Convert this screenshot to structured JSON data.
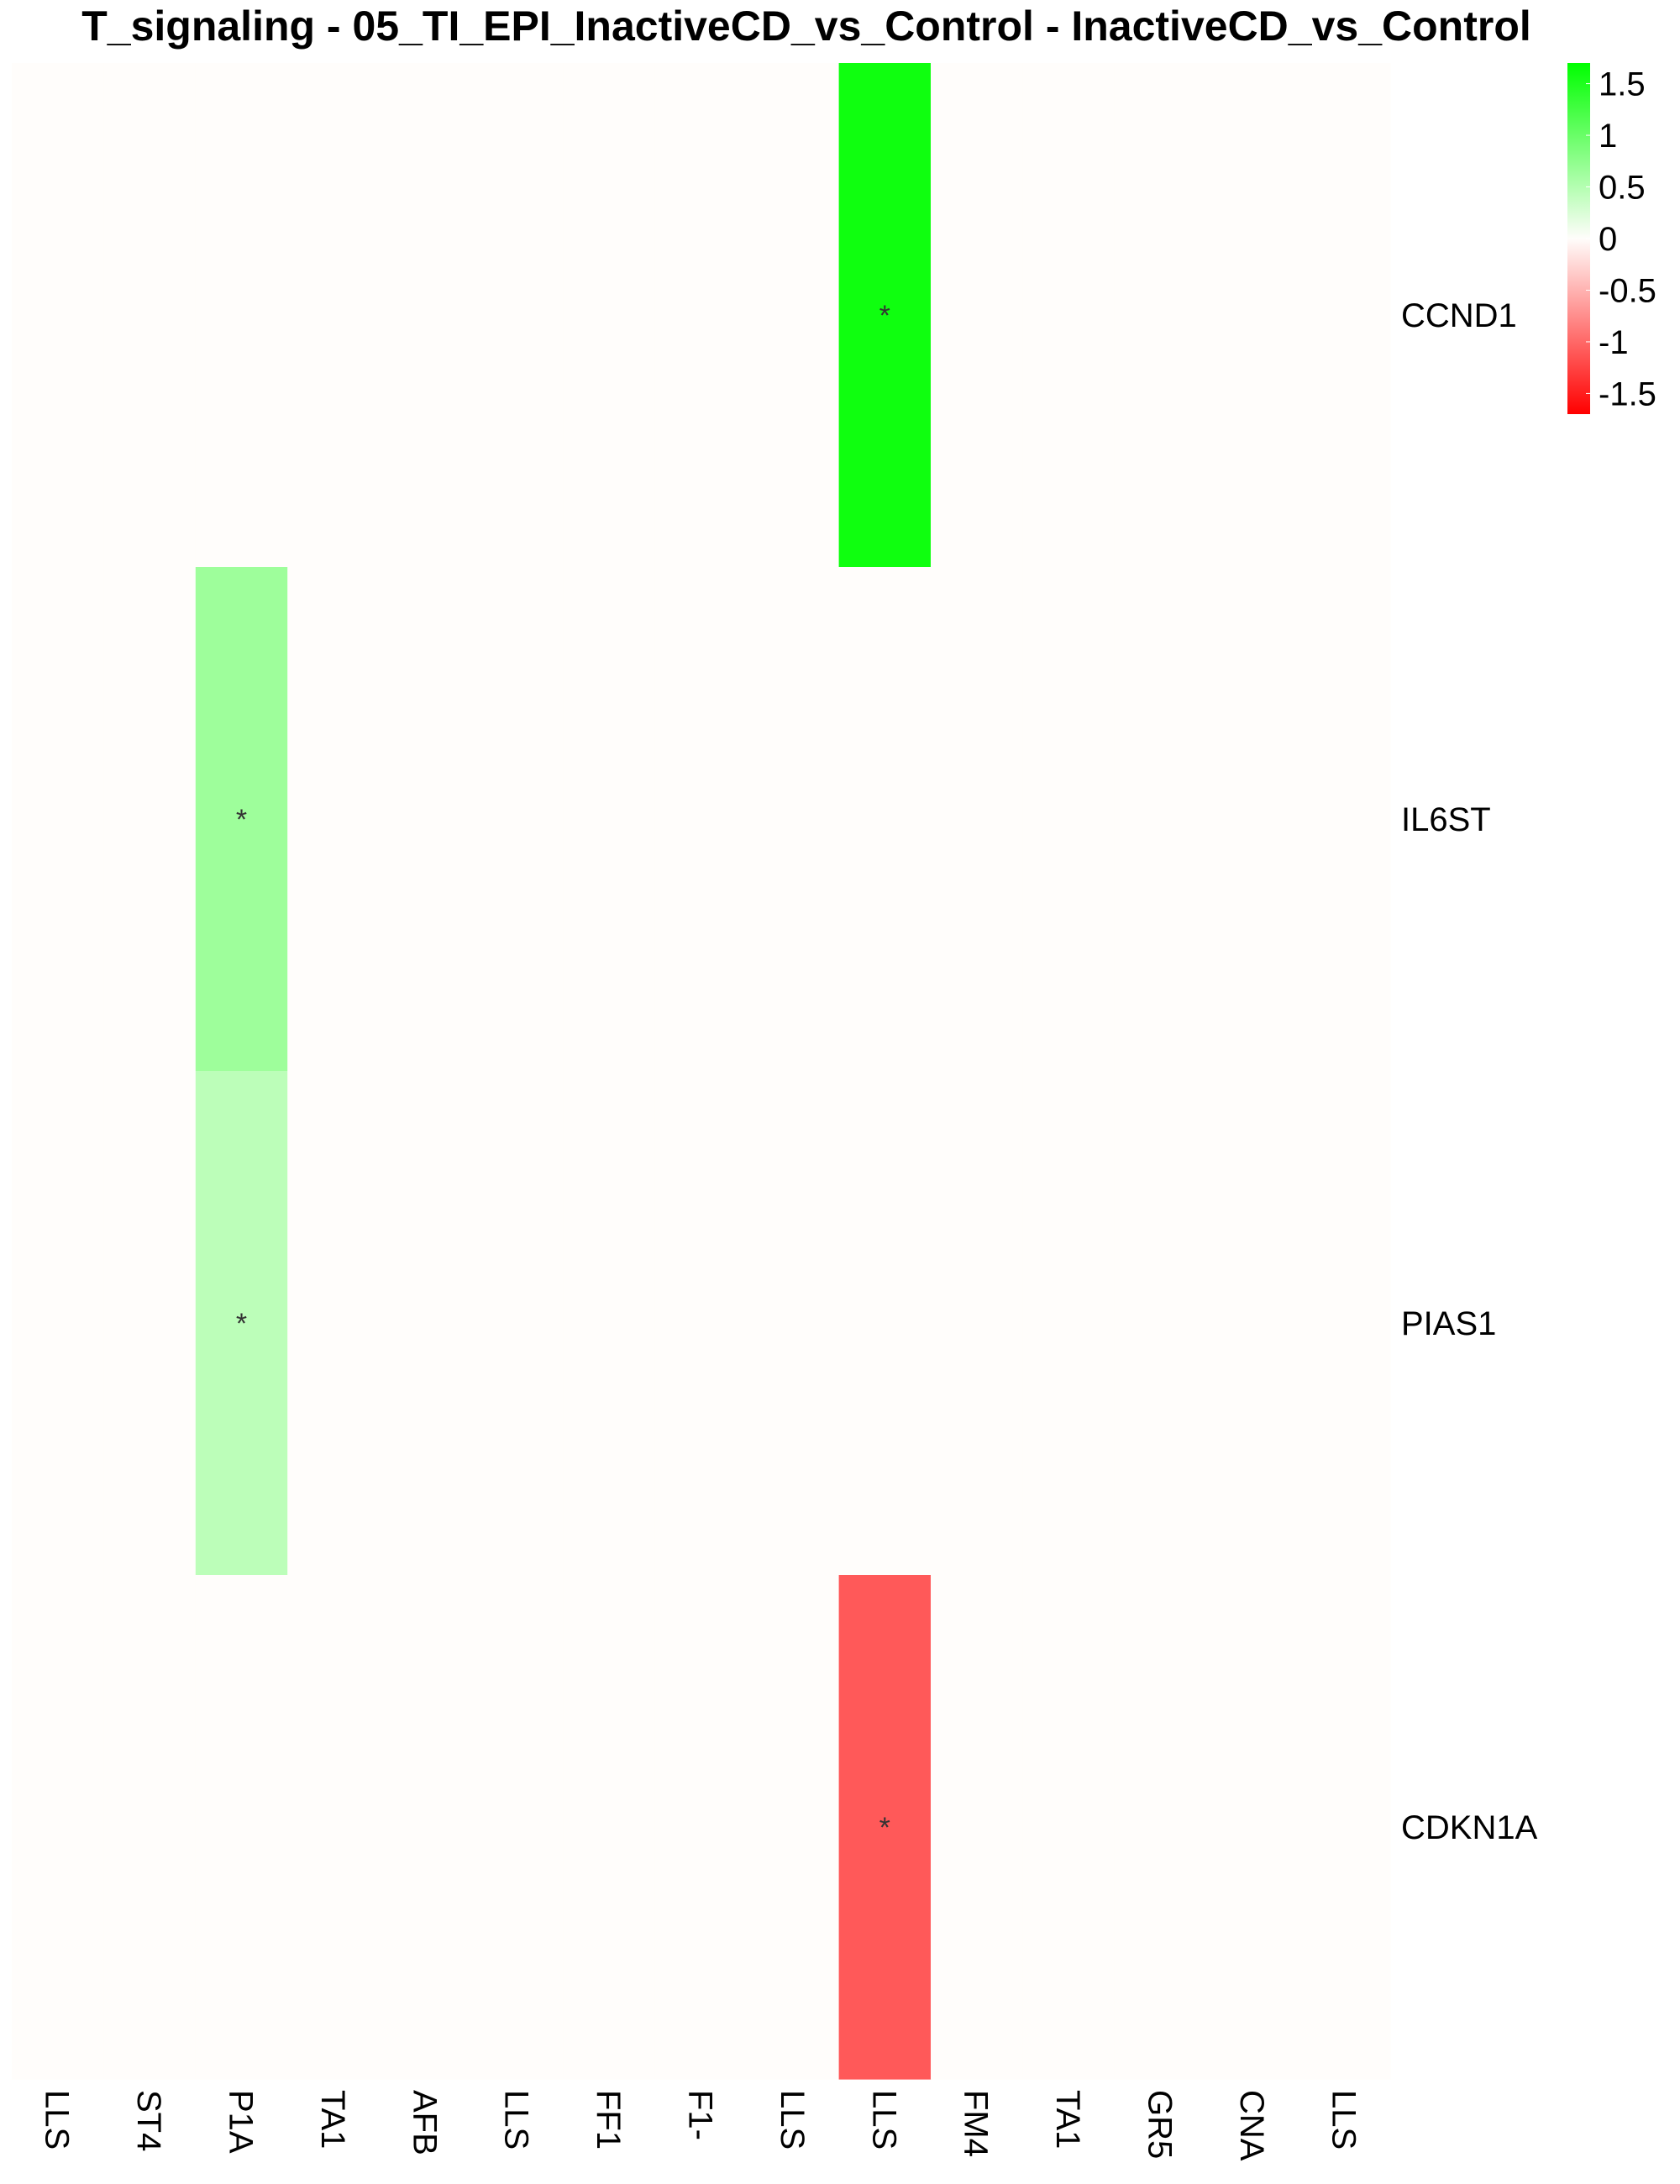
{
  "chart_data": {
    "type": "heatmap",
    "title": "T_signaling - 05_TI_EPI_InactiveCD_vs_Control - InactiveCD_vs_Control",
    "rows": [
      "CCND1",
      "IL6ST",
      "PIAS1",
      "CDKN1A"
    ],
    "columns": [
      "LLS",
      "ST4",
      "P1A",
      "TA1",
      "AFB",
      "LLS",
      "FF1",
      "F1-",
      "LLS",
      "LLS",
      "FM4",
      "TA1",
      "GR5",
      "CNA",
      "LLS"
    ],
    "values": [
      [
        0,
        0,
        0,
        0,
        0,
        0,
        0,
        0,
        0,
        1.6,
        0,
        0,
        0,
        0,
        0
      ],
      [
        0,
        0,
        0.65,
        0,
        0,
        0,
        0,
        0,
        0,
        0,
        0,
        0,
        0,
        0,
        0
      ],
      [
        0,
        0,
        0.45,
        0,
        0,
        0,
        0,
        0,
        0,
        0,
        0,
        0,
        0,
        0,
        0
      ],
      [
        0,
        0,
        0,
        0,
        0,
        0,
        0,
        0,
        0,
        -1.1,
        0,
        0,
        0,
        0,
        0
      ]
    ],
    "significance": [
      [
        0,
        0,
        0,
        0,
        0,
        0,
        0,
        0,
        0,
        1,
        0,
        0,
        0,
        0,
        0
      ],
      [
        0,
        0,
        1,
        0,
        0,
        0,
        0,
        0,
        0,
        0,
        0,
        0,
        0,
        0,
        0
      ],
      [
        0,
        0,
        1,
        0,
        0,
        0,
        0,
        0,
        0,
        0,
        0,
        0,
        0,
        0,
        0
      ],
      [
        0,
        0,
        0,
        0,
        0,
        0,
        0,
        0,
        0,
        1,
        0,
        0,
        0,
        0,
        0
      ]
    ],
    "significance_marker": "*",
    "color_scale": {
      "min": -1.7,
      "max": 1.7,
      "low_color": "#ff0000",
      "mid_color": "#fffdfb",
      "high_color": "#00ff00",
      "ticks": [
        "1.5",
        "1",
        "0.5",
        "0",
        "-0.5",
        "-1",
        "-1.5"
      ],
      "tick_values": [
        1.5,
        1,
        0.5,
        0,
        -0.5,
        -1,
        -1.5
      ]
    },
    "legend_position": "top-right",
    "grid": false
  }
}
